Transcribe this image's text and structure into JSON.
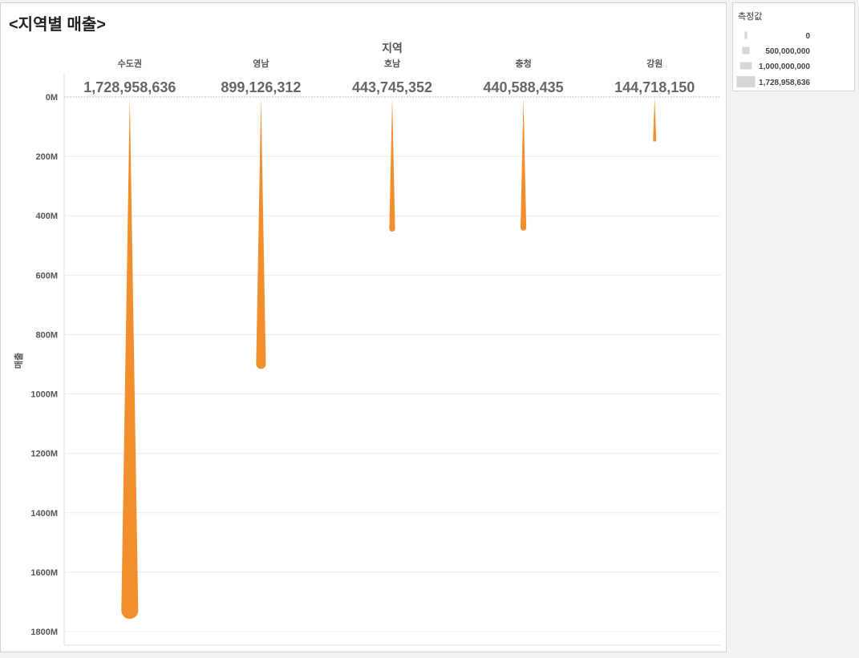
{
  "title": "<지역별 매출>",
  "legend": {
    "title": "측정값",
    "entries": [
      {
        "label": "0",
        "value": 0
      },
      {
        "label": "500,000,000",
        "value": 500000000
      },
      {
        "label": "1,000,000,000",
        "value": 1000000000
      },
      {
        "label": "1,728,958,636",
        "value": 1728958636
      }
    ]
  },
  "colors": {
    "mark": "#f28e2b",
    "grid": "#ececec",
    "zero_line": "#b8b8b8",
    "legend_mark": "#d7d7d7"
  },
  "chart_data": {
    "type": "bar",
    "mark_shape": "tapered-spike",
    "xlabel": "지역",
    "ylabel": "매출",
    "categories": [
      "수도권",
      "영남",
      "호남",
      "충청",
      "강원"
    ],
    "values": [
      1728958636,
      899126312,
      443745352,
      440588435,
      144718150
    ],
    "value_labels": [
      "1,728,958,636",
      "899,126,312",
      "443,745,352",
      "440,588,435",
      "144,718,150"
    ],
    "y_axis_reversed": true,
    "ylim": [
      0,
      1800000000
    ],
    "y_ticks": [
      0,
      200000000,
      400000000,
      600000000,
      800000000,
      1000000000,
      1200000000,
      1400000000,
      1600000000,
      1800000000
    ],
    "y_tick_labels": [
      "0M",
      "200M",
      "400M",
      "600M",
      "800M",
      "1000M",
      "1200M",
      "1400M",
      "1600M",
      "1800M"
    ],
    "grid": true,
    "legend_position": "top-right"
  }
}
